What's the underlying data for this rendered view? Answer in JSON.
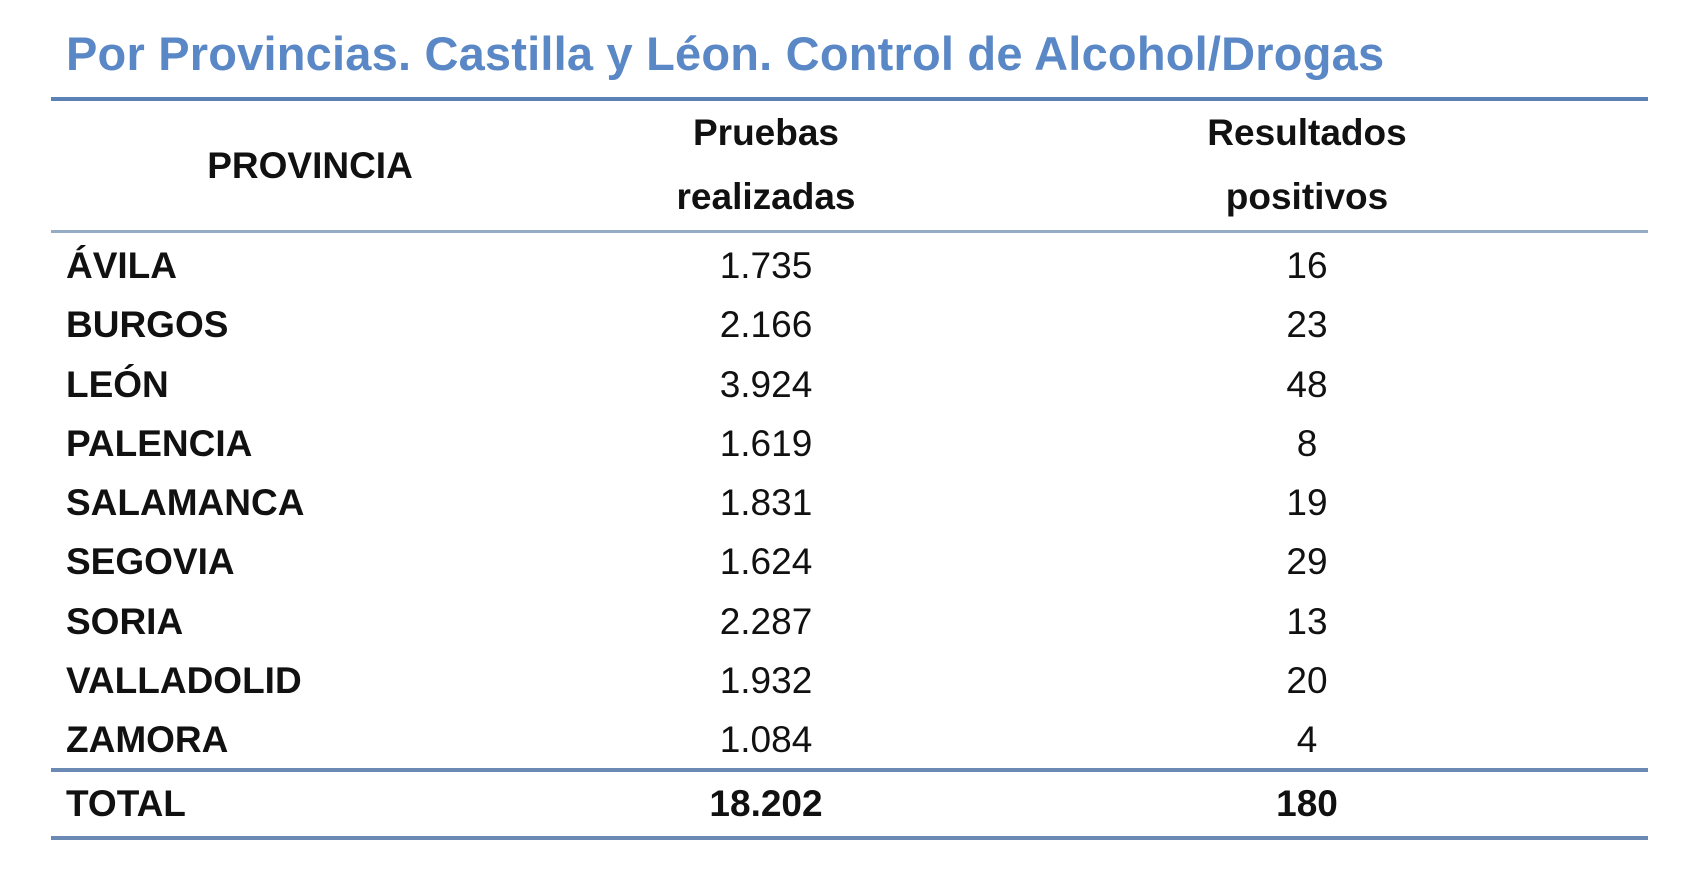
{
  "title": "Por Provincias. Castilla y Léon.  Control de Alcohol/Drogas",
  "colors": {
    "title": "#5a87c5",
    "rule_primary": "#5c82b5",
    "rule_header": "#94adc4",
    "text": "#111111"
  },
  "table": {
    "headers": {
      "provincia": "PROVINCIA",
      "pruebas_line1": "Pruebas",
      "pruebas_line2": "realizadas",
      "resultados_line1": "Resultados",
      "resultados_line2": "positivos"
    },
    "rows": [
      {
        "provincia": "ÁVILA",
        "pruebas": "1.735",
        "positivos": "16"
      },
      {
        "provincia": "BURGOS",
        "pruebas": "2.166",
        "positivos": "23"
      },
      {
        "provincia": "LEÓN",
        "pruebas": "3.924",
        "positivos": "48"
      },
      {
        "provincia": "PALENCIA",
        "pruebas": "1.619",
        "positivos": "8"
      },
      {
        "provincia": "SALAMANCA",
        "pruebas": "1.831",
        "positivos": "19"
      },
      {
        "provincia": "SEGOVIA",
        "pruebas": "1.624",
        "positivos": "29"
      },
      {
        "provincia": "SORIA",
        "pruebas": "2.287",
        "positivos": "13"
      },
      {
        "provincia": "VALLADOLID",
        "pruebas": "1.932",
        "positivos": "20"
      },
      {
        "provincia": "ZAMORA",
        "pruebas": "1.084",
        "positivos": "4"
      }
    ],
    "total": {
      "label": "TOTAL",
      "pruebas": "18.202",
      "positivos": "180"
    }
  }
}
